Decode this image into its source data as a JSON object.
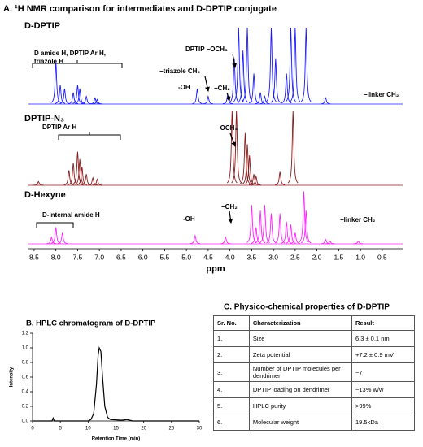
{
  "nmr": {
    "title": "A. ¹H NMR comparison for intermediates and D-DPTIP conjugate",
    "x_label": "ppm",
    "xlim": [
      8.63,
      0.03
    ],
    "xticks": [
      8.5,
      {
        "value": 8,
        "label": "8.0"
      },
      7.5,
      {
        "value": 7,
        "label": "7.0"
      },
      6.5,
      {
        "value": 6,
        "label": "6.0"
      },
      5.5,
      {
        "value": 5,
        "label": "5.0"
      },
      4.5,
      {
        "value": 4,
        "label": "4.0"
      },
      3.5,
      {
        "value": 3,
        "label": "3.0"
      },
      2.5,
      {
        "value": 2,
        "label": "2.0"
      },
      1.5,
      {
        "value": 1,
        "label": "1.0"
      },
      0.5
    ],
    "spectra": [
      {
        "name": "D-DPTIP",
        "color": "#1a1aff",
        "peak_ppm": [
          8.0,
          7.9,
          7.8,
          7.6,
          7.5,
          7.45,
          7.3,
          7.1,
          7.05,
          4.75,
          4.5,
          4.05,
          3.9,
          3.8,
          3.7,
          3.6,
          3.45,
          3.3,
          3.2,
          3.05,
          2.95,
          2.7,
          2.6,
          2.5,
          2.25,
          1.8
        ],
        "peak_height": [
          55,
          25,
          20,
          15,
          25,
          20,
          10,
          8,
          6,
          20,
          10,
          12,
          60,
          100,
          70,
          100,
          40,
          15,
          10,
          100,
          60,
          40,
          100,
          100,
          100,
          8
        ],
        "annotations": [
          [
            "D amide H, DPTIP Ar H,",
            "triazole H"
          ],
          [
            "DPTIP −OCH₃"
          ],
          [
            "−triazole CH₂"
          ],
          [
            "-OH"
          ],
          [
            "−CH₂"
          ],
          [
            "−linker CH₂"
          ]
        ]
      },
      {
        "name": "DPTIP-N₃",
        "color": "#8b1a1a",
        "peak_ppm": [
          8.4,
          7.7,
          7.6,
          7.5,
          7.45,
          7.4,
          7.3,
          7.15,
          7.05,
          3.95,
          3.85,
          3.65,
          3.6,
          3.55,
          3.45,
          3.4,
          2.85,
          2.55
        ],
        "peak_height": [
          5,
          20,
          30,
          45,
          35,
          25,
          15,
          10,
          8,
          100,
          100,
          70,
          55,
          40,
          15,
          12,
          18,
          100
        ],
        "annotations": [
          [
            "DPTIP Ar H"
          ],
          [
            "−OCH₃"
          ]
        ]
      },
      {
        "name": "D-Hexyne",
        "color": "#ff22ff",
        "peak_ppm": [
          8.1,
          8.0,
          7.85,
          4.8,
          4.1,
          3.5,
          3.4,
          3.3,
          3.2,
          3.05,
          2.85,
          2.7,
          2.6,
          2.5,
          2.3,
          2.25,
          1.8,
          1.7,
          1.05
        ],
        "peak_height": [
          12,
          30,
          20,
          15,
          12,
          70,
          30,
          60,
          70,
          55,
          55,
          40,
          35,
          20,
          95,
          60,
          8,
          5,
          5
        ],
        "annotations": [
          [
            "D-internal amide H"
          ],
          [
            "-OH"
          ],
          [
            "−CH₂"
          ],
          [
            "−linker CH₂"
          ]
        ]
      }
    ]
  },
  "hplc": {
    "title": "B. HPLC chromatogram of D-DPTIP",
    "x_label": "Retention Time (min)",
    "y_label": "Intensity",
    "color": "#000000",
    "xlim": [
      0,
      30
    ],
    "ylim": [
      0,
      1.2
    ],
    "xticks": [
      0,
      5,
      10,
      15,
      20,
      25,
      30
    ],
    "yticks": [
      {
        "value": 0,
        "label": "0.0"
      },
      0.2,
      0.4,
      0.6,
      0.8,
      {
        "value": 1,
        "label": "1.0"
      },
      1.2
    ],
    "x": [
      0,
      3.5,
      3.7,
      3.9,
      10,
      10.5,
      11,
      11.5,
      11.8,
      12,
      12.3,
      12.6,
      13,
      13.5,
      14,
      16,
      17,
      18,
      30
    ],
    "y": [
      0,
      0,
      0.04,
      0,
      0,
      0.02,
      0.1,
      0.5,
      0.9,
      1.0,
      0.95,
      0.6,
      0.2,
      0.05,
      0.02,
      0.01,
      0.02,
      0,
      0
    ]
  },
  "table": {
    "title": "C. Physico-chemical properties of D-DPTIP",
    "columns": [
      "Sr. No.",
      "Characterization",
      "Result"
    ],
    "rows": [
      [
        "1.",
        "Size",
        "6.3 ± 0.1 nm"
      ],
      [
        "2.",
        "Zeta potential",
        "+7.2 ± 0.9 mV"
      ],
      [
        "3.",
        "Number of DPTIP molecules per dendrimer",
        "~7"
      ],
      [
        "4.",
        "DPTIP loading on dendrimer",
        "~13% w/w"
      ],
      [
        "5.",
        "HPLC purity",
        ">99%"
      ],
      [
        "6.",
        "Molecular weight",
        "19.5kDa"
      ]
    ]
  }
}
